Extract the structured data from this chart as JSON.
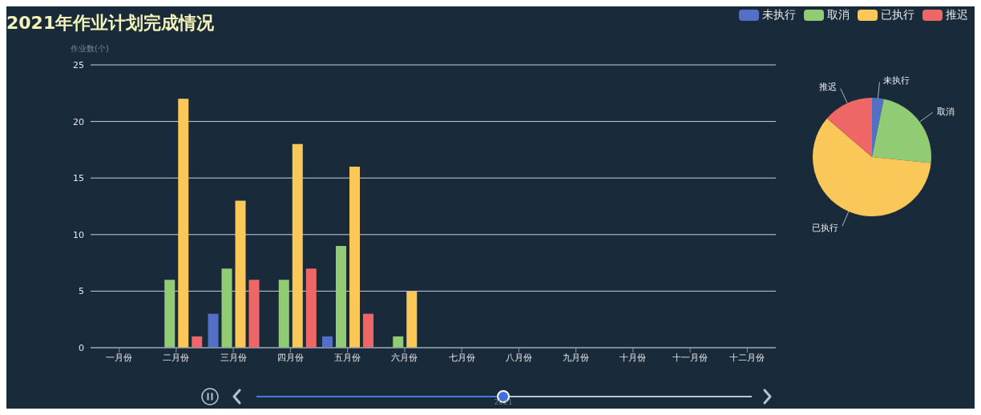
{
  "chart_data": [
    {
      "type": "bar",
      "title": "2021年作业计划完成情况",
      "ylabel": "作业数(个)",
      "categories": [
        "一月份",
        "二月份",
        "三月份",
        "四月份",
        "五月份",
        "六月份",
        "七月份",
        "八月份",
        "九月份",
        "十月份",
        "十一月份",
        "十二月份"
      ],
      "series": [
        {
          "name": "未执行",
          "color": "#5470c6",
          "values": [
            0,
            0,
            3,
            0,
            1,
            0,
            null,
            null,
            null,
            null,
            null,
            null
          ]
        },
        {
          "name": "取消",
          "color": "#91cc75",
          "values": [
            0,
            6,
            7,
            6,
            9,
            1,
            null,
            null,
            null,
            null,
            null,
            null
          ]
        },
        {
          "name": "已执行",
          "color": "#fac858",
          "values": [
            0,
            22,
            13,
            18,
            16,
            5,
            null,
            null,
            null,
            null,
            null,
            null
          ]
        },
        {
          "name": "推迟",
          "color": "#ee6666",
          "values": [
            0,
            1,
            6,
            7,
            3,
            0,
            null,
            null,
            null,
            null,
            null,
            null
          ]
        }
      ],
      "ylim": [
        0,
        25
      ],
      "yticks": [
        0,
        5,
        10,
        15,
        20,
        25
      ],
      "grid": "y",
      "legend": "top right",
      "annotations": [
        "2021"
      ]
    },
    {
      "type": "pie",
      "categories": [
        "未执行",
        "取消",
        "已执行",
        "推迟"
      ],
      "values": [
        3.2,
        23.4,
        59.7,
        13.7
      ],
      "colors": [
        "#5470c6",
        "#91cc75",
        "#fac858",
        "#ee6666"
      ]
    }
  ]
}
